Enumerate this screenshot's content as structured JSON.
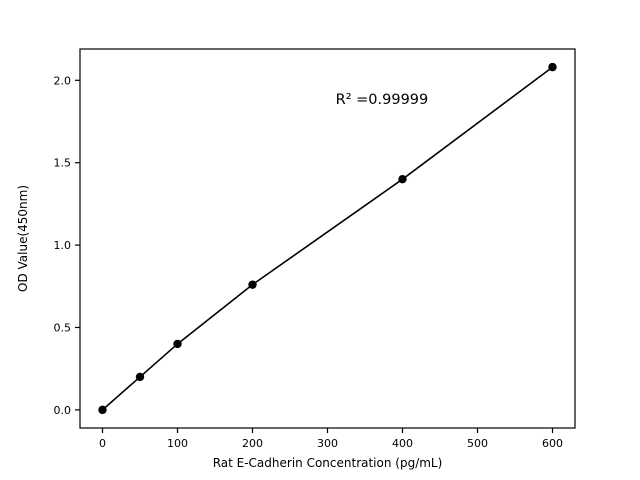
{
  "chart_data": {
    "type": "scatter",
    "title": "",
    "xlabel": "Rat E-Cadherin Concentration (pg/mL)",
    "ylabel": "OD Value(450nm)",
    "annotation": "R² =0.99999",
    "x": [
      0,
      50,
      100,
      200,
      400,
      600
    ],
    "y": [
      0.0,
      0.2,
      0.4,
      0.76,
      1.4,
      2.08
    ],
    "xlim": [
      -30,
      630
    ],
    "ylim": [
      -0.11,
      2.19
    ],
    "xticks": [
      0,
      100,
      200,
      300,
      400,
      500,
      600
    ],
    "yticks": [
      0.0,
      0.5,
      1.0,
      1.5,
      2.0
    ],
    "grid": false,
    "legend": "none",
    "line_color": "#000000",
    "marker_color": "#000000",
    "axes_color": "#000000",
    "background_color": "#ffffff"
  }
}
